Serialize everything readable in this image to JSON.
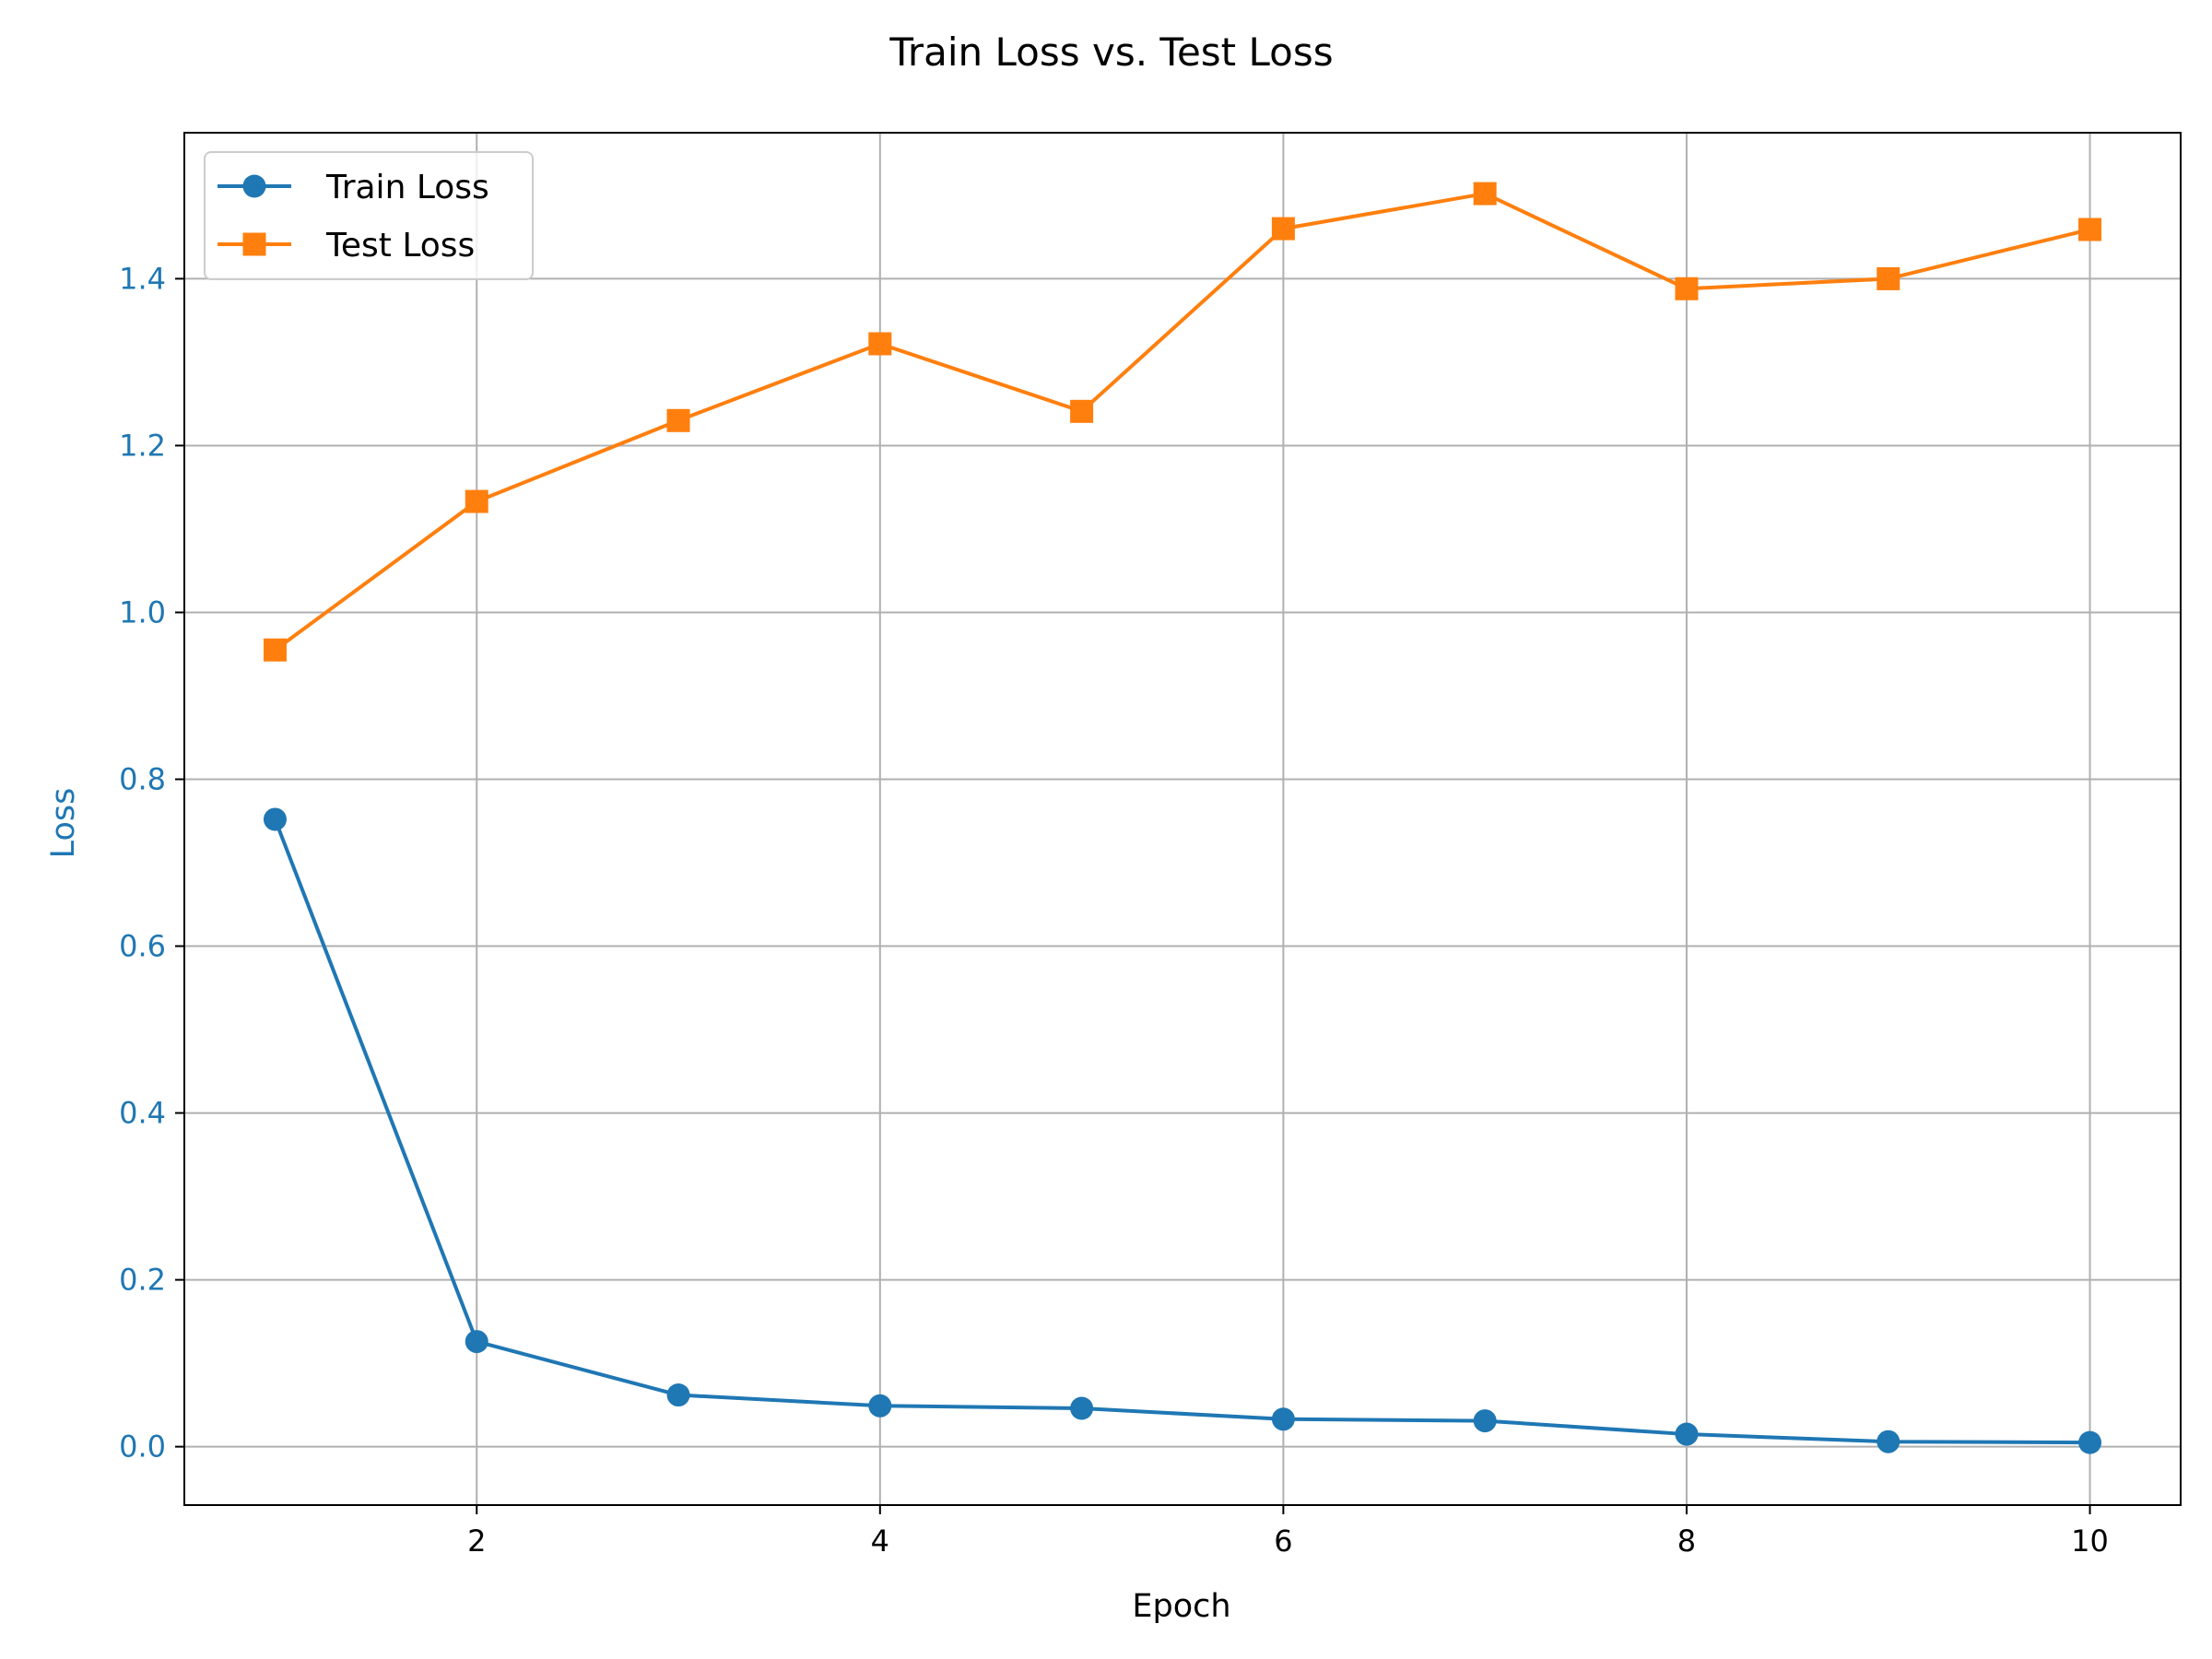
{
  "chart_data": {
    "type": "line",
    "title": "Train Loss vs. Test Loss",
    "xlabel": "Epoch",
    "ylabel": "Loss",
    "x": [
      1,
      2,
      3,
      4,
      5,
      6,
      7,
      8,
      9,
      10
    ],
    "xlim": [
      0.55,
      10.45
    ],
    "ylim": [
      -0.07,
      1.575
    ],
    "xticks": [
      2,
      4,
      6,
      8,
      10
    ],
    "xtick_labels": [
      "2",
      "4",
      "6",
      "8",
      "10"
    ],
    "yticks": [
      0.0,
      0.2,
      0.4,
      0.6,
      0.8,
      1.0,
      1.2,
      1.4
    ],
    "ytick_labels": [
      "0.0",
      "0.2",
      "0.4",
      "0.6",
      "0.8",
      "1.0",
      "1.2",
      "1.4"
    ],
    "grid": true,
    "legend_position": "top-left",
    "series": [
      {
        "name": "Train Loss",
        "color": "#1f77b4",
        "marker": "circle",
        "values": [
          0.752,
          0.126,
          0.062,
          0.049,
          0.046,
          0.033,
          0.031,
          0.015,
          0.006,
          0.005
        ]
      },
      {
        "name": "Test Loss",
        "color": "#ff7f0e",
        "marker": "square",
        "values": [
          0.955,
          1.133,
          1.23,
          1.322,
          1.241,
          1.46,
          1.502,
          1.388,
          1.4,
          1.459
        ]
      }
    ],
    "ylabel_color": "#1f77b4",
    "ytick_color": "#1f77b4"
  }
}
